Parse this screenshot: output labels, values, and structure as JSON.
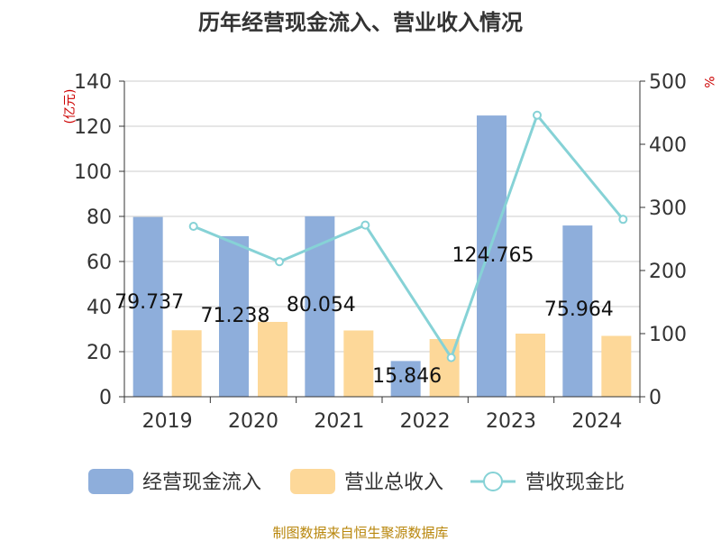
{
  "chart_data": {
    "type": "bar",
    "title": "历年经营现金流入、营业收入情况",
    "categories": [
      "2019",
      "2020",
      "2021",
      "2022",
      "2023",
      "2024"
    ],
    "series": [
      {
        "name": "经营现金流入",
        "type": "bar",
        "axis": "left",
        "color": "#8eaedb",
        "values": [
          79.737,
          71.238,
          80.054,
          15.846,
          124.765,
          75.964
        ],
        "labels": [
          "79.737",
          "71.238",
          "80.054",
          "15.846",
          "124.765",
          "75.964"
        ]
      },
      {
        "name": "营业总收入",
        "type": "bar",
        "axis": "left",
        "color": "#fdd899",
        "values": [
          29.5,
          33.2,
          29.4,
          25.6,
          28.0,
          27.0
        ]
      },
      {
        "name": "营收现金比",
        "type": "line",
        "axis": "right",
        "color": "#86d2d6",
        "values": [
          270,
          214,
          272,
          62,
          446,
          281
        ]
      }
    ],
    "y_left": {
      "label": "(亿元)",
      "min": 0,
      "max": 140,
      "ticks": [
        0,
        20,
        40,
        60,
        80,
        100,
        120,
        140
      ]
    },
    "y_right": {
      "label": "%",
      "min": 0,
      "max": 500,
      "ticks": [
        0,
        100,
        200,
        300,
        400,
        500
      ]
    },
    "grid": true,
    "legend_position": "bottom"
  },
  "footer": "制图数据来自恒生聚源数据库"
}
